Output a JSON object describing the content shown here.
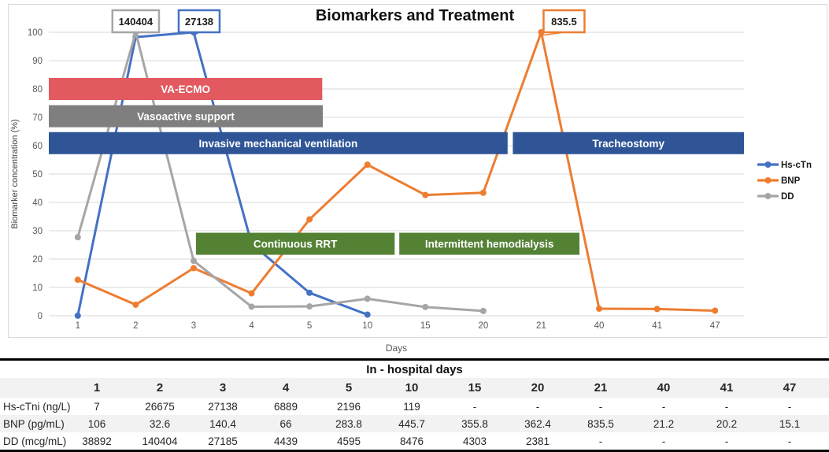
{
  "title": "Biomarkers and Treatment",
  "chart_data": {
    "type": "line",
    "title": "Biomarkers and Treatment",
    "xlabel": "Days",
    "ylabel": "Biomarker concentration (%)",
    "ylim": [
      0,
      100
    ],
    "ytick_step": 10,
    "grid": true,
    "legend_position": "right",
    "normalized_to_percent_of_peak": true,
    "categories": [
      "1",
      "2",
      "3",
      "4",
      "5",
      "10",
      "15",
      "20",
      "21",
      "40",
      "41",
      "47"
    ],
    "series": [
      {
        "name": "Hs-cTn",
        "color": "#4472C4",
        "values": [
          0.03,
          98.3,
          100,
          25.4,
          8.1,
          0.4,
          null,
          null,
          null,
          null,
          null,
          null
        ]
      },
      {
        "name": "BNP",
        "color": "#ED7D31",
        "values": [
          12.7,
          3.9,
          16.8,
          7.9,
          34.0,
          53.3,
          42.6,
          43.4,
          100,
          2.5,
          2.4,
          1.8
        ]
      },
      {
        "name": "DD",
        "color": "#A6A6A6",
        "values": [
          27.7,
          100,
          19.4,
          3.2,
          3.3,
          6.0,
          3.1,
          1.7,
          null,
          null,
          null,
          null
        ]
      }
    ],
    "annotations": [
      {
        "text": "140404",
        "series": "DD",
        "category_index": 1,
        "color": "#A6A6A6",
        "dx": 0
      },
      {
        "text": "27138",
        "series": "Hs-cTn",
        "category_index": 2,
        "color": "#4472C4",
        "dx": 7
      },
      {
        "text": "835.5",
        "series": "BNP",
        "category_index": 8,
        "color": "#ED7D31",
        "dx": 29
      }
    ],
    "treatment_bars": [
      {
        "label": "VA-ECMO",
        "color": "#E2595F",
        "x_start": -0.5,
        "x_end": 4.22,
        "y_center": 80.0,
        "name": "va-ecmo-bar"
      },
      {
        "label": "Vasoactive support",
        "color": "#7F7F7F",
        "x_start": -0.5,
        "x_end": 4.23,
        "y_center": 70.4,
        "name": "vasoactive-support-bar"
      },
      {
        "label": "Invasive mechanical ventilation",
        "color": "#2F5597",
        "x_start": -0.5,
        "x_end": 7.42,
        "y_center": 60.9,
        "name": "invasive-mechanical-ventilation-bar"
      },
      {
        "label": "Tracheostomy",
        "color": "#2F5597",
        "x_start": 7.51,
        "x_end": 11.5,
        "y_center": 60.9,
        "name": "tracheostomy-bar"
      },
      {
        "label": "Continuous RRT",
        "color": "#548235",
        "x_start": 2.04,
        "x_end": 5.47,
        "y_center": 25.4,
        "name": "continuous-rrt-bar"
      },
      {
        "label": "Intermittent hemodialysis",
        "color": "#548235",
        "x_start": 5.55,
        "x_end": 8.66,
        "y_center": 25.4,
        "name": "intermittent-hemodialysis-bar"
      }
    ],
    "colors": {
      "gridline": "#D9D9D9",
      "frame_border": "#D9D9D9",
      "axis_text": "#595959",
      "title_text": "#111111"
    }
  },
  "table": {
    "title": "In - hospital days",
    "columns": [
      "1",
      "2",
      "3",
      "4",
      "5",
      "10",
      "15",
      "20",
      "21",
      "40",
      "41",
      "47"
    ],
    "rows": [
      {
        "label": "Hs-cTni (ng/L)",
        "values": [
          "7",
          "26675",
          "27138",
          "6889",
          "2196",
          "119",
          "-",
          "-",
          "-",
          "-",
          "-",
          "-"
        ]
      },
      {
        "label": "BNP (pg/mL)",
        "values": [
          "106",
          "32.6",
          "140.4",
          "66",
          "283.8",
          "445.7",
          "355.8",
          "362.4",
          "835.5",
          "21.2",
          "20.2",
          "15.1"
        ]
      },
      {
        "label": "DD (mcg/mL)",
        "values": [
          "38892",
          "140404",
          "27185",
          "4439",
          "4595",
          "8476",
          "4303",
          "2381",
          "-",
          "-",
          "-",
          "-"
        ]
      }
    ],
    "stripe_color": "#F2F2F2"
  }
}
